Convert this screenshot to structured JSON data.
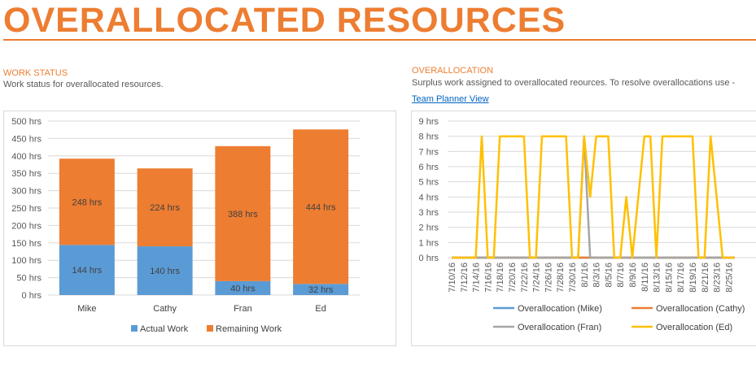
{
  "page": {
    "title": "OVERALLOCATED RESOURCES"
  },
  "work_status": {
    "heading": "WORK STATUS",
    "description": "Work status for overallocated resources."
  },
  "overallocation": {
    "heading": "OVERALLOCATION",
    "description": "Surplus work assigned to overallocated reources. To resolve overallocations use -",
    "link_label": "Team Planner View"
  },
  "colors": {
    "accent": "#ED7D31",
    "actual": "#5B9BD5",
    "remaining": "#ED7D31",
    "mike": "#5B9BD5",
    "cathy": "#ED7D31",
    "fran": "#A5A5A5",
    "ed": "#FFC000"
  },
  "chart_data": [
    {
      "type": "bar",
      "stacked": true,
      "categories": [
        "Mike",
        "Cathy",
        "Fran",
        "Ed"
      ],
      "series": [
        {
          "name": "Actual Work",
          "values": [
            144,
            140,
            40,
            32
          ],
          "labels": [
            "144 hrs",
            "140 hrs",
            "40 hrs",
            "32 hrs"
          ]
        },
        {
          "name": "Remaining Work",
          "values": [
            248,
            224,
            388,
            444
          ],
          "labels": [
            "248 hrs",
            "224 hrs",
            "388 hrs",
            "444 hrs"
          ]
        }
      ],
      "ylim": [
        0,
        500
      ],
      "yticks": [
        "0 hrs",
        "50 hrs",
        "100 hrs",
        "150 hrs",
        "200 hrs",
        "250 hrs",
        "300 hrs",
        "350 hrs",
        "400 hrs",
        "450 hrs",
        "500 hrs"
      ],
      "grid": true,
      "legend": "bottom"
    },
    {
      "type": "line",
      "x": [
        "7/10/16",
        "7/11/16",
        "7/12/16",
        "7/13/16",
        "7/14/16",
        "7/15/16",
        "7/16/16",
        "7/17/16",
        "7/18/16",
        "7/19/16",
        "7/20/16",
        "7/21/16",
        "7/22/16",
        "7/23/16",
        "7/24/16",
        "7/25/16",
        "7/26/16",
        "7/27/16",
        "7/28/16",
        "7/29/16",
        "7/30/16",
        "7/31/16",
        "8/1/16",
        "8/2/16",
        "8/3/16",
        "8/4/16",
        "8/5/16",
        "8/6/16",
        "8/7/16",
        "8/8/16",
        "8/9/16",
        "8/10/16",
        "8/11/16",
        "8/12/16",
        "8/13/16",
        "8/14/16",
        "8/15/16",
        "8/16/16",
        "8/17/16",
        "8/18/16",
        "8/19/16",
        "8/20/16",
        "8/21/16",
        "8/22/16",
        "8/23/16",
        "8/24/16",
        "8/25/16",
        "8/26/16"
      ],
      "xtick_labels": [
        "7/10/16",
        "7/12/16",
        "7/14/16",
        "7/16/16",
        "7/18/16",
        "7/20/16",
        "7/22/16",
        "7/24/16",
        "7/26/16",
        "7/28/16",
        "7/30/16",
        "8/1/16",
        "8/3/16",
        "8/5/16",
        "8/7/16",
        "8/9/16",
        "8/11/16",
        "8/13/16",
        "8/15/16",
        "8/17/16",
        "8/19/16",
        "8/21/16",
        "8/23/16",
        "8/25/16"
      ],
      "series": [
        {
          "name": "Overallocation (Mike)",
          "values": [
            0,
            0,
            0,
            0,
            0,
            0,
            0,
            0,
            0,
            0,
            0,
            0,
            0,
            0,
            0,
            0,
            0,
            0,
            0,
            0,
            0,
            0,
            0,
            0,
            0,
            0,
            0,
            0,
            0,
            0,
            0,
            0,
            0,
            0,
            0,
            0,
            0,
            0,
            0,
            0,
            0,
            0,
            0,
            0,
            0,
            0,
            0,
            0
          ]
        },
        {
          "name": "Overallocation (Cathy)",
          "values": [
            0,
            0,
            0,
            0,
            0,
            0,
            0,
            0,
            0,
            0,
            0,
            0,
            0,
            0,
            0,
            0,
            0,
            0,
            0,
            0,
            0,
            0,
            0,
            0,
            0,
            0,
            0,
            0,
            0,
            0,
            0,
            0,
            0,
            0,
            0,
            0,
            0,
            0,
            0,
            0,
            0,
            0,
            0,
            0,
            0,
            0,
            0,
            0
          ]
        },
        {
          "name": "Overallocation (Fran)",
          "values": [
            0,
            0,
            0,
            0,
            0,
            0,
            0,
            0,
            0,
            0,
            0,
            0,
            0,
            0,
            0,
            0,
            0,
            0,
            0,
            0,
            0,
            0,
            8,
            0,
            0,
            0,
            0,
            0,
            0,
            0,
            0,
            0,
            0,
            0,
            0,
            0,
            0,
            0,
            0,
            0,
            0,
            0,
            0,
            0,
            0,
            0,
            0,
            0
          ]
        },
        {
          "name": "Overallocation (Ed)",
          "values": [
            0,
            0,
            0,
            0,
            0,
            8,
            0,
            0,
            8,
            8,
            8,
            8,
            8,
            0,
            0,
            8,
            8,
            8,
            8,
            8,
            0,
            0,
            8,
            4,
            8,
            8,
            8,
            0,
            0,
            4,
            0,
            4,
            8,
            8,
            0,
            8,
            8,
            8,
            8,
            8,
            8,
            0,
            0,
            8,
            4,
            0,
            0,
            0
          ]
        }
      ],
      "ylim": [
        0,
        9
      ],
      "yticks": [
        "0 hrs",
        "1 hrs",
        "2 hrs",
        "3 hrs",
        "4 hrs",
        "5 hrs",
        "6 hrs",
        "7 hrs",
        "8 hrs",
        "9 hrs"
      ],
      "grid": true,
      "legend": "bottom"
    }
  ]
}
